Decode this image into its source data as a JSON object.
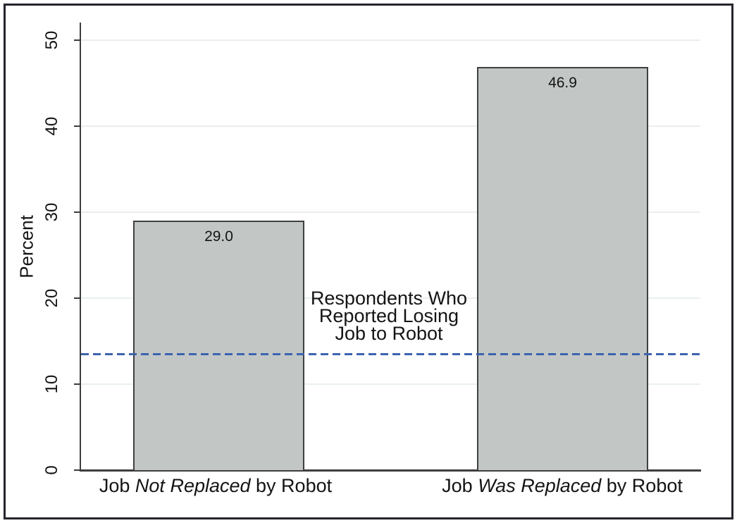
{
  "figure": {
    "background": "#ffffff",
    "border_color": "#25252d"
  },
  "chart_data": {
    "type": "bar",
    "title": "",
    "xlabel": "",
    "ylabel": "Percent",
    "ylim": [
      0,
      52
    ],
    "yticks": [
      0,
      10,
      20,
      30,
      40,
      50
    ],
    "ytick_labels": [
      "0",
      "10",
      "20",
      "30",
      "40",
      "50"
    ],
    "grid": "horizontal",
    "legend": "none",
    "categories": [
      {
        "pre": "Job ",
        "italic": "Not Replaced",
        "post": " by Robot"
      },
      {
        "pre": "Job ",
        "italic": "Was Replaced",
        "post": " by Robot"
      }
    ],
    "values": [
      29.0,
      46.9
    ],
    "value_labels": [
      "29.0",
      "46.9"
    ],
    "bar_fill": "#c2c7c6",
    "bar_border": "#3f3f3f",
    "gridline_color": "#e9efed",
    "reference_line": {
      "value": 13.5,
      "style": "dashed",
      "color": "#3c64ae",
      "annotation_lines": [
        "Respondents Who",
        "Reported Losing",
        "Job to Robot"
      ]
    }
  }
}
